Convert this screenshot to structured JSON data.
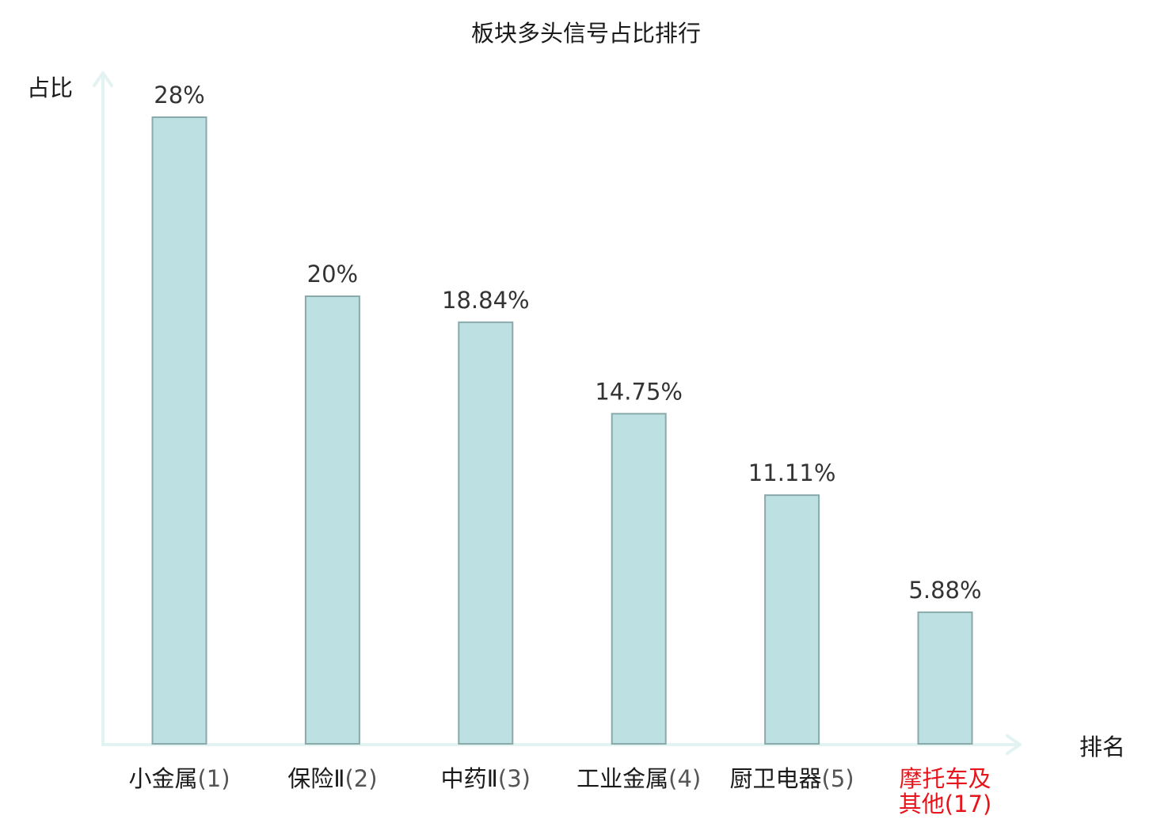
{
  "chart_data": {
    "type": "bar",
    "title": "板块多头信号占比排行",
    "ylabel": "占比",
    "xlabel": "排名",
    "categories": [
      {
        "name": "小金属",
        "rank": "(1)",
        "highlight": false
      },
      {
        "name": "保险Ⅱ",
        "rank": "(2)",
        "highlight": false
      },
      {
        "name": "中药Ⅱ",
        "rank": "(3)",
        "highlight": false
      },
      {
        "name": "工业金属",
        "rank": "(4)",
        "highlight": false
      },
      {
        "name": "厨卫电器",
        "rank": "(5)",
        "highlight": false
      },
      {
        "name": "摩托车及其他",
        "rank": "(17)",
        "highlight": true
      }
    ],
    "values": [
      28,
      20,
      18.84,
      14.75,
      11.11,
      5.88
    ],
    "value_labels": [
      "28%",
      "20%",
      "18.84%",
      "14.75%",
      "11.11%",
      "5.88%"
    ],
    "ylim": [
      0,
      28
    ],
    "grid": false,
    "legend": "none",
    "colors": {
      "bar_fill": "#bde0e2",
      "bar_stroke": "#8aa9ab",
      "axis": "#e2f3f1",
      "label_text": "#333333",
      "category_text": "#1a1a1a",
      "highlight_text": "#e8141b"
    }
  }
}
